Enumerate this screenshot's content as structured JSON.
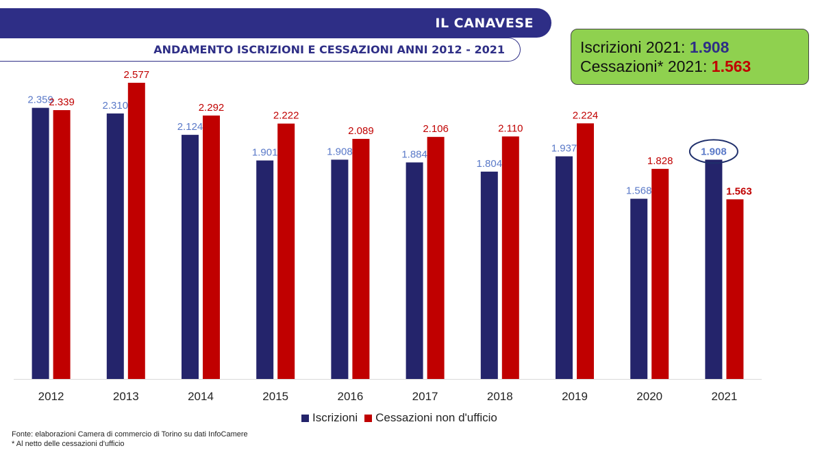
{
  "header": {
    "region": "IL CANAVESE",
    "title": "ANDAMENTO ISCRIZIONI E CESSAZIONI ANNI 2012 - 2021"
  },
  "summary": {
    "line1_label": "Iscrizioni 2021:",
    "line1_value": "1.908",
    "line2_label": "Cessazioni* 2021:",
    "line2_value": "1.563"
  },
  "chart_data": {
    "type": "bar",
    "title": "ANDAMENTO ISCRIZIONI E CESSAZIONI ANNI 2012 - 2021",
    "xlabel": "",
    "ylabel": "",
    "ylim": [
      0,
      2700
    ],
    "grid": false,
    "legend_position": "bottom",
    "categories": [
      "2012",
      "2013",
      "2014",
      "2015",
      "2016",
      "2017",
      "2018",
      "2019",
      "2020",
      "2021"
    ],
    "series": [
      {
        "name": "Iscrizioni",
        "color": "#24246b",
        "label_color": "#5a79c8",
        "values": [
          2359,
          2310,
          2124,
          1901,
          1908,
          1884,
          1804,
          1937,
          1568,
          1908
        ],
        "labels": [
          "2.359",
          "2.310",
          "2.124",
          "1.901",
          "1.908",
          "1.884",
          "1.804",
          "1.937",
          "1.568",
          "1.908"
        ]
      },
      {
        "name": "Cessazioni non d'ufficio",
        "color": "#c00000",
        "label_color": "#c00000",
        "values": [
          2339,
          2577,
          2292,
          2222,
          2089,
          2106,
          2110,
          2224,
          1828,
          1563
        ],
        "labels": [
          "2.339",
          "2.577",
          "2.292",
          "2.222",
          "2.089",
          "2.106",
          "2.110",
          "2.224",
          "1.828",
          "1.563"
        ]
      }
    ]
  },
  "footer": {
    "source": "Fonte: elaborazioni Camera di commercio di Torino su dati InfoCamere",
    "note": "* Al netto delle cessazioni d'ufficio"
  }
}
